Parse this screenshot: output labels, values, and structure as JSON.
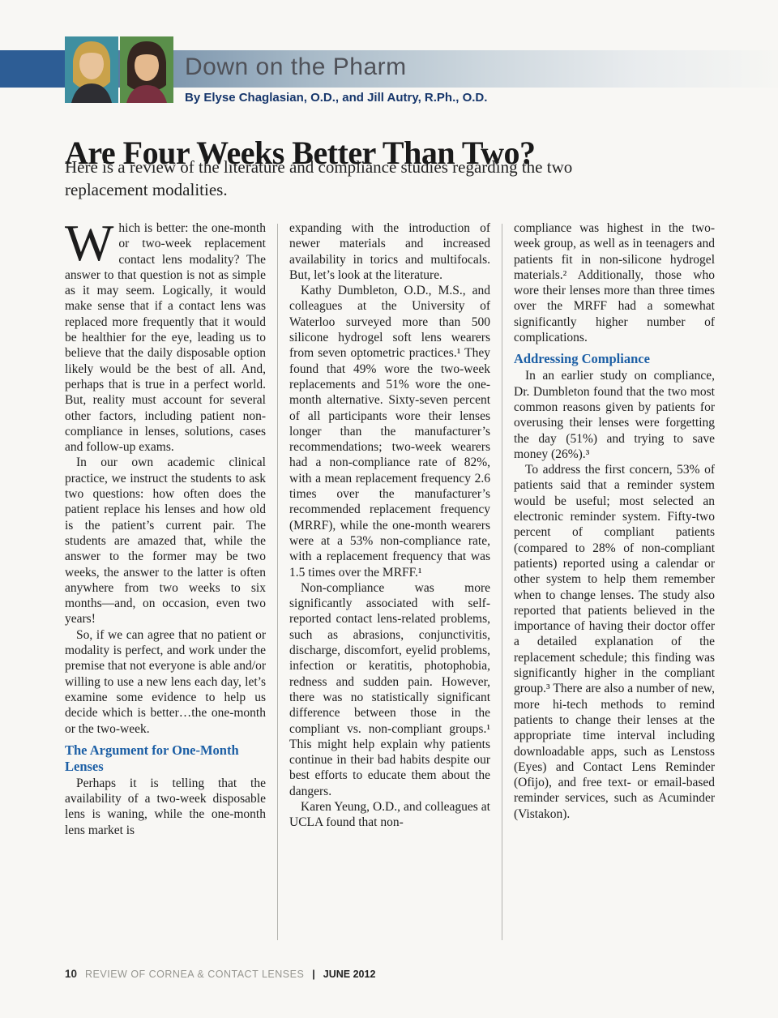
{
  "header": {
    "column_title": "Down on the Pharm",
    "byline": "By Elyse Chaglasian, O.D., and Jill Autry, R.Ph., O.D."
  },
  "article": {
    "title": "Are Four Weeks Better Than Two?",
    "deck": "Here is a review of the literature and compliance studies regarding the two replacement modalities.",
    "columns": [
      {
        "blocks": [
          {
            "type": "para",
            "indent": false,
            "drop_cap": "W",
            "text": "hich is better: the one-month or two-week replacement contact lens modality? The answer to that question is not as simple as it may seem. Logically, it would make sense that if a contact lens was replaced more frequently that it would be healthier for the eye, leading us to believe that the daily disposable option likely would be the best of all. And, perhaps that is true in a perfect world. But, reality must account for several other factors, including patient non-compliance in lenses, solutions, cases and follow-up exams."
          },
          {
            "type": "para",
            "indent": true,
            "text": "In our own academic clinical practice, we instruct the students to ask two questions: how often does the patient replace his lenses and how old is the patient’s current pair. The students are amazed that, while the answer to the former may be two weeks, the answer to the latter is often anywhere from two weeks to six months—and, on occasion, even two years!"
          },
          {
            "type": "para",
            "indent": true,
            "text": "So, if we can agree that no patient or modality is perfect, and work under the premise that not everyone is able and/or willing to use a new lens each day, let’s examine some evidence to help us decide which is better…the one-month or the two-week."
          },
          {
            "type": "heading",
            "text": "The Argument for One-Month Lenses"
          },
          {
            "type": "para",
            "indent": true,
            "text": "Perhaps it is telling that the availability of a two-week disposable lens is waning, while the one-month lens market is"
          }
        ]
      },
      {
        "blocks": [
          {
            "type": "para",
            "indent": false,
            "text": "expanding with the introduction of newer materials and increased availability in torics and multifocals. But, let’s look at the literature."
          },
          {
            "type": "para",
            "indent": true,
            "text": "Kathy Dumbleton, O.D., M.S., and colleagues at the University of Waterloo surveyed more than 500 silicone hydrogel soft lens wearers from seven optometric practices.¹ They found that 49% wore the two-week replacements and 51% wore the one-month alternative. Sixty-seven percent of all participants wore their lenses longer than the manufacturer’s recommendations; two-week wearers had a non-compliance rate of 82%, with a mean replacement frequency 2.6 times over the manufacturer’s recommended replacement frequency (MRRF), while the one-month wearers were at a 53% non-compliance rate, with a replacement frequency that was 1.5 times over the MRFF.¹"
          },
          {
            "type": "para",
            "indent": true,
            "text": "Non-compliance was more significantly associated with self-reported contact lens-related problems, such as abrasions, conjunctivitis, discharge, discomfort, eyelid problems, infection or keratitis, photophobia, redness and sudden pain. However, there was no statistically significant difference between those in the compliant vs. non-compliant groups.¹ This might help explain why patients continue in their bad habits despite our best efforts to educate them about the dangers."
          },
          {
            "type": "para",
            "indent": true,
            "text": "Karen Yeung, O.D., and colleagues at UCLA found that non-"
          }
        ]
      },
      {
        "blocks": [
          {
            "type": "para",
            "indent": false,
            "text": "compliance was highest in the two-week group, as well as in teenagers and patients fit in non-silicone hydrogel materials.² Additionally, those who wore their lenses more than three times over the MRFF had a somewhat significantly higher number of complications."
          },
          {
            "type": "heading",
            "text": "Addressing Compliance"
          },
          {
            "type": "para",
            "indent": true,
            "text": "In an earlier study on compliance, Dr. Dumbleton found that the two most common reasons given by patients for overusing their lenses were forgetting the day (51%) and trying to save money (26%).³"
          },
          {
            "type": "para",
            "indent": true,
            "text": "To address the first concern, 53% of patients said that a reminder system would be useful; most selected an electronic reminder system. Fifty-two percent of compliant patients (compared to 28% of non-compliant patients) reported using a calendar or other system to help them remember when to change lenses. The study also reported that patients believed in the importance of having their doctor offer a detailed explanation of the replacement schedule; this finding was significantly higher in the compliant group.³ There are also a number of new, more hi-tech methods to remind patients to change their lenses at the appropriate time interval including downloadable apps, such as Lenstoss (Eyes) and Contact Lens Reminder (Ofijo), and free text- or email-based reminder services, such as Acuminder (Vistakon)."
          }
        ]
      }
    ]
  },
  "footer": {
    "page_number": "10",
    "journal_name": "REVIEW OF CORNEA & CONTACT LENSES",
    "separator": "|",
    "issue": "JUNE 2012"
  },
  "colors": {
    "accent_blue": "#1c5fa5",
    "byline_navy": "#16366b",
    "banner_dark_blue": "#2d5d95",
    "column_title_gray": "#4f5158"
  }
}
